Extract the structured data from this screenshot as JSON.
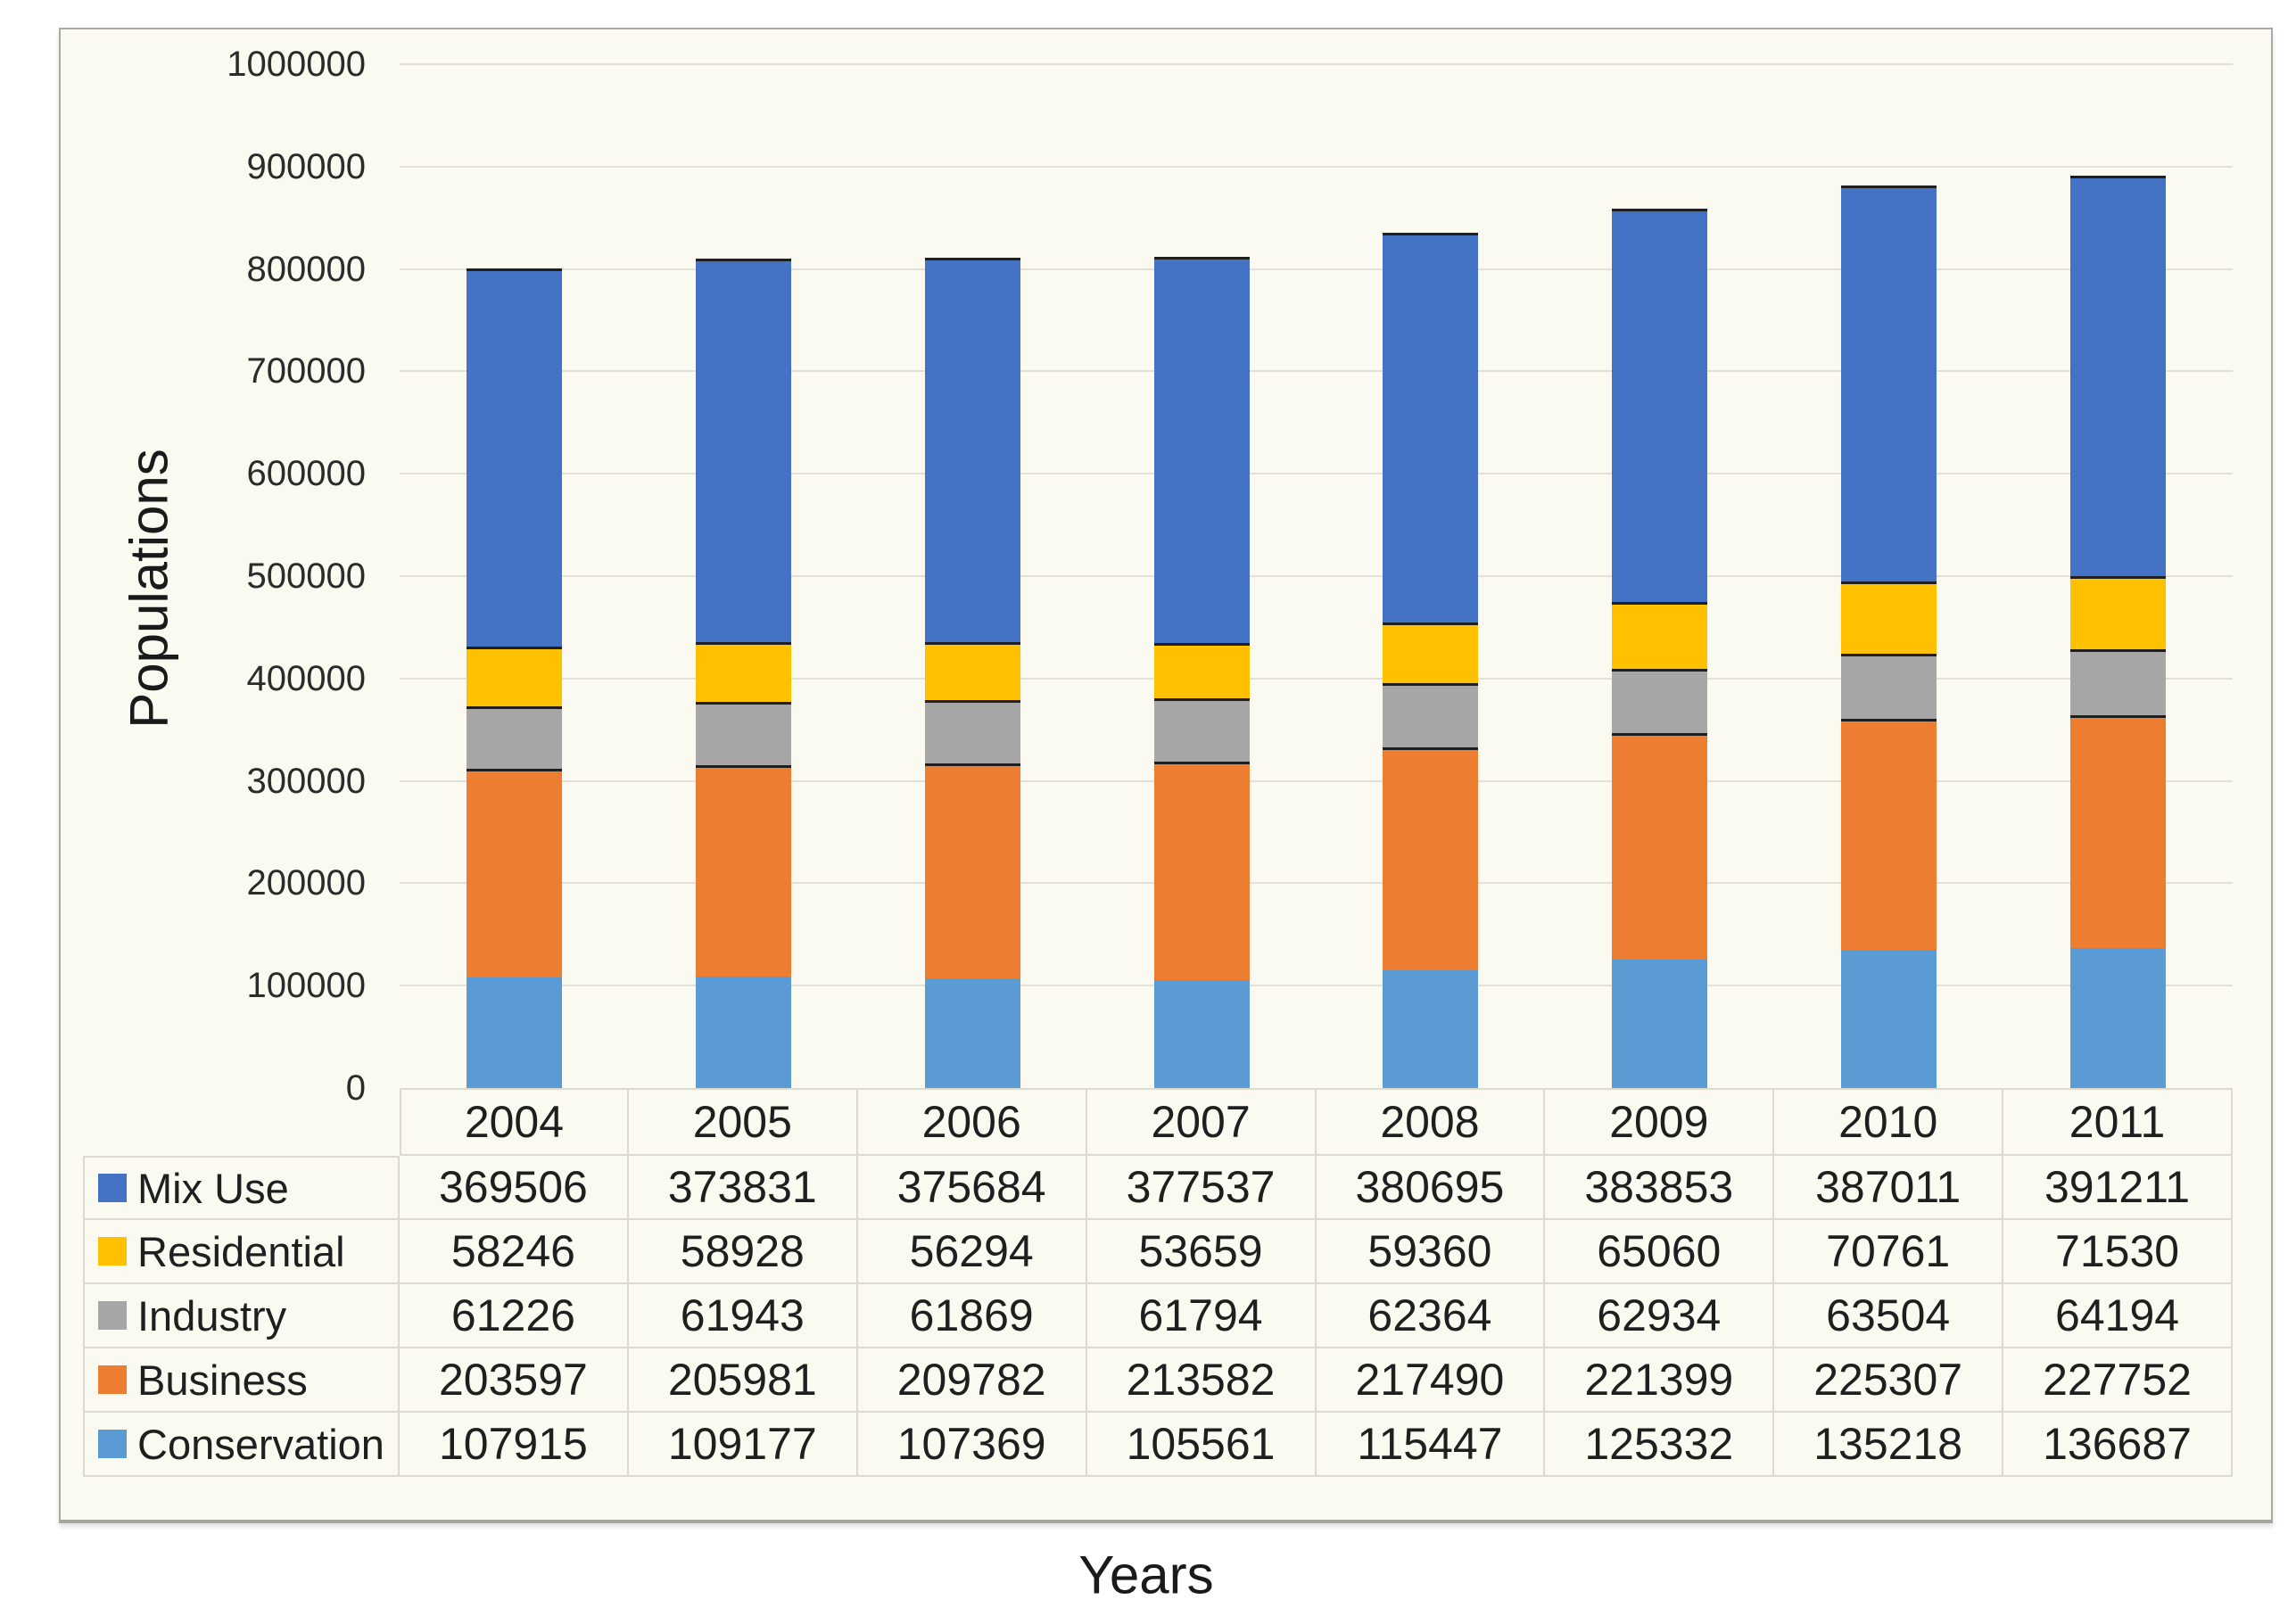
{
  "palette": {
    "page_background": "#FFFFFF",
    "chart_background": "#FBFAF1",
    "frame_border": "#ABA9A1",
    "gridline": "#E3E0D7",
    "table_border": "#DCD9CF",
    "segment_separator": "#1F1F1F",
    "text": "#262626"
  },
  "chart_data": {
    "type": "bar",
    "stacked": true,
    "title": "",
    "xlabel": "Years",
    "ylabel": "Populations",
    "ylim": [
      0,
      1000000
    ],
    "ytick_step": 100000,
    "ytick_labels": [
      "1000000",
      "900000",
      "800000",
      "700000",
      "600000",
      "500000",
      "400000",
      "300000",
      "200000",
      "100000",
      "0"
    ],
    "grid": true,
    "legend_position": "table-left",
    "categories": [
      "2004",
      "2005",
      "2006",
      "2007",
      "2008",
      "2009",
      "2010",
      "2011"
    ],
    "series": [
      {
        "name": "Mix Use",
        "color": "#4472C4",
        "values": [
          369506,
          373831,
          375684,
          377537,
          380695,
          383853,
          387011,
          391211
        ]
      },
      {
        "name": "Residential",
        "color": "#FFC000",
        "values": [
          58246,
          58928,
          56294,
          53659,
          59360,
          65060,
          70761,
          71530
        ]
      },
      {
        "name": "Industry",
        "color": "#A6A6A6",
        "values": [
          61226,
          61943,
          61869,
          61794,
          62364,
          62934,
          63504,
          64194
        ]
      },
      {
        "name": "Business",
        "color": "#ED7D31",
        "values": [
          203597,
          205981,
          209782,
          213582,
          217490,
          221399,
          225307,
          227752
        ]
      },
      {
        "name": "Conservation",
        "color": "#5B9BD5",
        "values": [
          107915,
          109177,
          107369,
          105561,
          115447,
          125332,
          135218,
          136687
        ]
      }
    ]
  }
}
